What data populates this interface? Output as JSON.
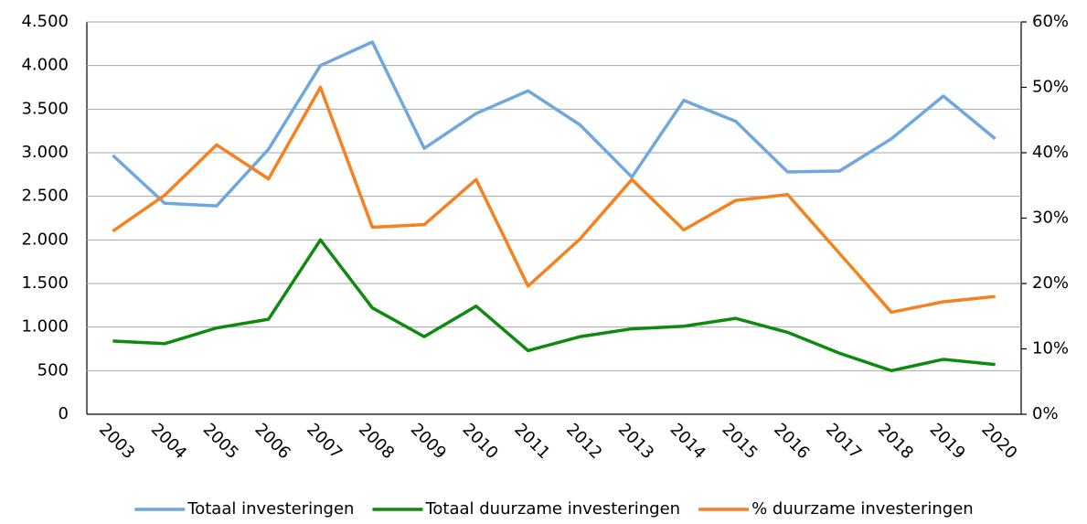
{
  "chart_data": {
    "type": "line",
    "categories": [
      "2003",
      "2004",
      "2005",
      "2006",
      "2007",
      "2008",
      "2009",
      "2010",
      "2011",
      "2012",
      "2013",
      "2014",
      "2015",
      "2016",
      "2017",
      "2018",
      "2019",
      "2020"
    ],
    "series": [
      {
        "name": "Totaal investeringen",
        "color": "#6fa8dc",
        "values": [
          2970,
          2420,
          2390,
          3040,
          4000,
          4270,
          3050,
          3450,
          3710,
          3320,
          2720,
          3600,
          3360,
          2780,
          2790,
          3160,
          3650,
          3160
        ]
      },
      {
        "name": "Totaal duurzame investeringen",
        "color": "#0e8a0e",
        "values": [
          840,
          810,
          990,
          1090,
          2000,
          1220,
          890,
          1240,
          730,
          890,
          980,
          1010,
          1100,
          940,
          700,
          500,
          630,
          570
        ]
      },
      {
        "name": "% duurzame investeringen",
        "color": "#f5821f",
        "axis": "y2",
        "values": [
          28,
          33.5,
          41.2,
          36,
          50,
          28.6,
          29,
          35.9,
          19.6,
          26.8,
          35.9,
          28.2,
          32.7,
          33.6,
          24.6,
          15.6,
          17.2,
          18
        ]
      }
    ],
    "ylim": [
      0,
      4500
    ],
    "yticks": [
      0,
      500,
      {
        "value": 1000,
        "label": "1.000"
      },
      {
        "value": 1500,
        "label": "1.500"
      },
      {
        "value": 2000,
        "label": "2.000"
      },
      {
        "value": 2500,
        "label": "2.500"
      },
      {
        "value": 3000,
        "label": "3.000"
      },
      {
        "value": 3500,
        "label": "3.500"
      },
      {
        "value": 4000,
        "label": "4.000"
      },
      {
        "value": 4500,
        "label": "4.500"
      }
    ],
    "y2lim": [
      0,
      60
    ],
    "y2ticks": [
      {
        "value": 0,
        "label": "0%"
      },
      {
        "value": 10,
        "label": "10%"
      },
      {
        "value": 20,
        "label": "20%"
      },
      {
        "value": 30,
        "label": "30%"
      },
      {
        "value": 40,
        "label": "40%"
      },
      {
        "value": 50,
        "label": "50%"
      },
      {
        "value": 60,
        "label": "60%"
      }
    ],
    "grid": true
  }
}
